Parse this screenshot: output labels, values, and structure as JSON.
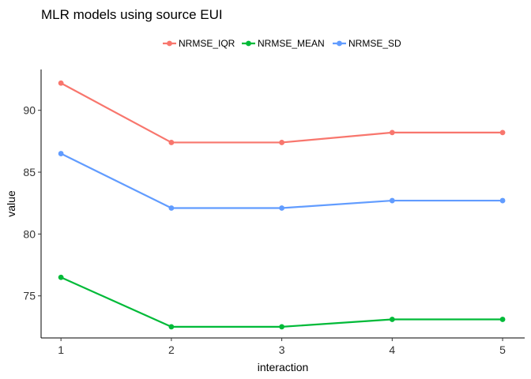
{
  "chart_data": {
    "type": "line",
    "title": "MLR models using source EUI",
    "xlabel": "interaction",
    "ylabel": "value",
    "x": [
      1,
      2,
      3,
      4,
      5
    ],
    "xticks": [
      1,
      2,
      3,
      4,
      5
    ],
    "yticks": [
      75,
      80,
      85,
      90
    ],
    "xlim": [
      0.82,
      5.2
    ],
    "ylim": [
      71.6,
      93.3
    ],
    "grid": false,
    "legend_position": "top",
    "series": [
      {
        "name": "NRMSE_IQR",
        "color": "#F8766D",
        "values": [
          92.2,
          87.4,
          87.4,
          88.2,
          88.2
        ]
      },
      {
        "name": "NRMSE_MEAN",
        "color": "#00BA38",
        "values": [
          76.5,
          72.5,
          72.5,
          73.1,
          73.1
        ]
      },
      {
        "name": "NRMSE_SD",
        "color": "#619CFF",
        "values": [
          86.5,
          82.1,
          82.1,
          82.7,
          82.7
        ]
      }
    ]
  }
}
